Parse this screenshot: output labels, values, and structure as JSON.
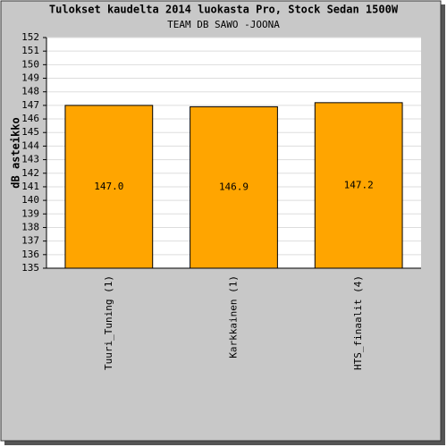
{
  "chart_data": {
    "type": "bar",
    "title": "Tulokset kaudelta 2014 luokasta Pro, Stock Sedan 1500W",
    "subtitle": "TEAM DB SAWO -JOONA",
    "y_label": "dB asteikko",
    "categories": [
      "Tuuri_Tuning (1)",
      "Karkkainen (1)",
      "HTS_finaalit (4)"
    ],
    "values": [
      147.0,
      146.9,
      147.2
    ],
    "value_labels": [
      "147.0",
      "146.9",
      "147.2"
    ],
    "color": "#ffa500",
    "ylim": [
      135,
      152
    ],
    "yticks": [
      135,
      136,
      137,
      138,
      139,
      140,
      141,
      142,
      143,
      144,
      145,
      146,
      147,
      148,
      149,
      150,
      151,
      152
    ],
    "grid": true
  }
}
